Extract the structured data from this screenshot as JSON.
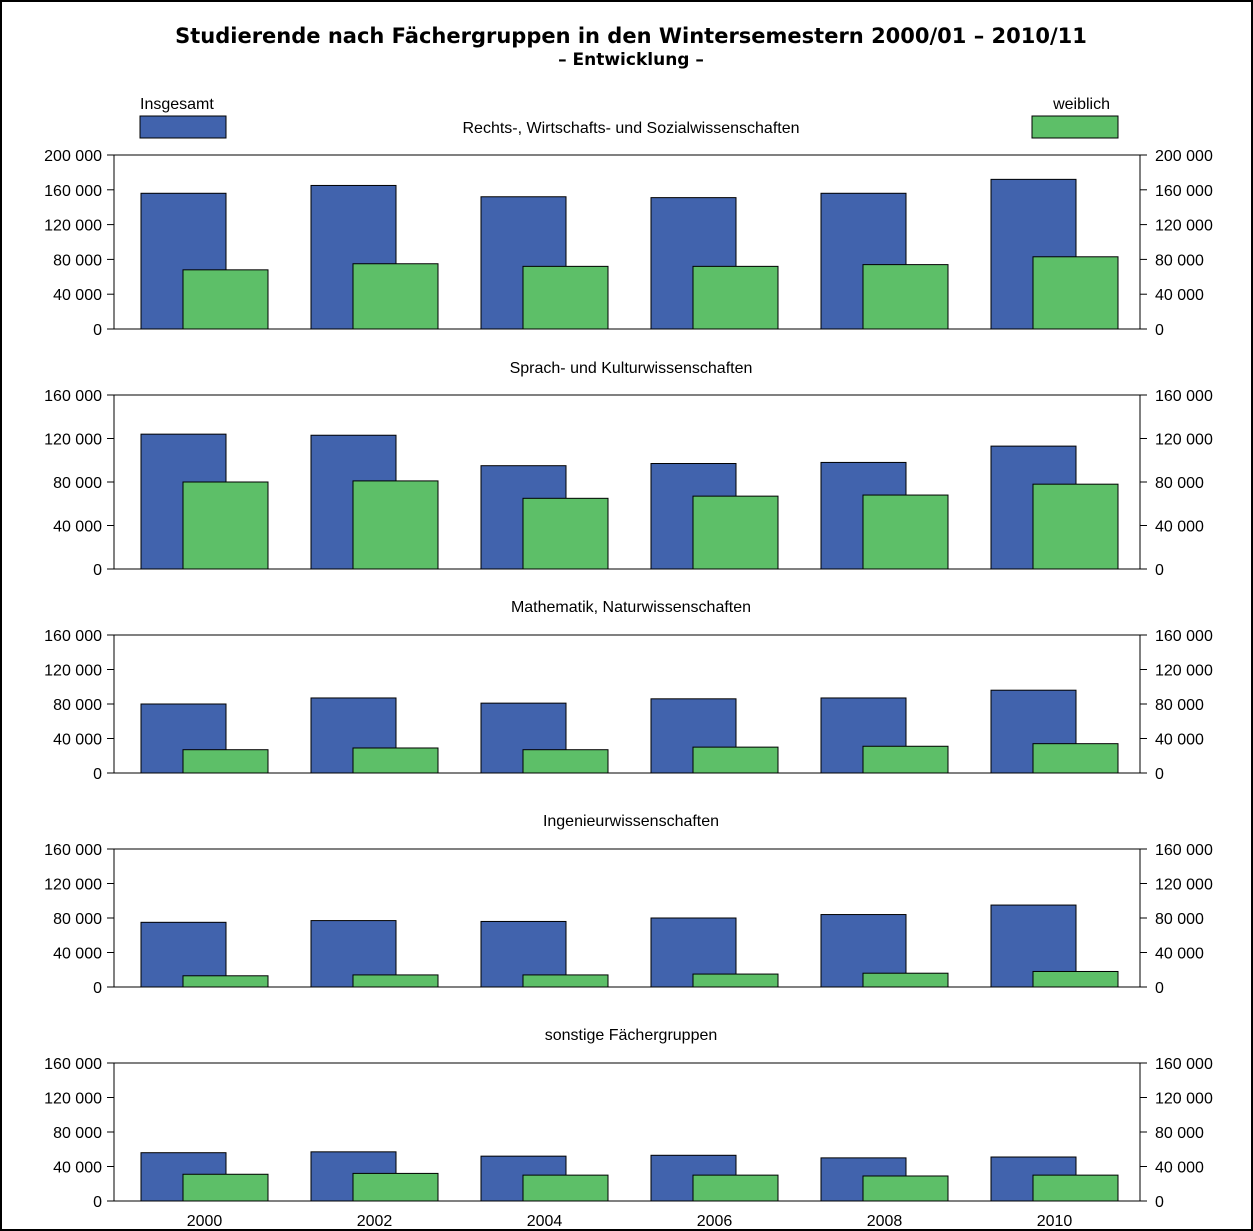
{
  "chart_data": {
    "type": "bar",
    "title": "Studierende nach Fächergruppen in den Wintersemestern 2000/01 – 2010/11",
    "subtitle": "– Entwicklung –",
    "categories": [
      "2000",
      "2002",
      "2004",
      "2006",
      "2008",
      "2010"
    ],
    "legend": {
      "placement": "top",
      "series": [
        {
          "name": "Insgesamt",
          "color": "#4163ad"
        },
        {
          "name": "weiblich",
          "color": "#5dbf68"
        }
      ]
    },
    "grid": false,
    "panels": [
      {
        "title": "Rechts-, Wirtschafts- und Sozialwissenschaften",
        "ylim": [
          0,
          200000
        ],
        "yticks": [
          0,
          40000,
          80000,
          120000,
          160000,
          200000
        ],
        "ytick_labels": [
          "0",
          "40 000",
          "80 000",
          "120 000",
          "160 000",
          "200 000"
        ],
        "series": [
          {
            "name": "Insgesamt",
            "values": [
              156000,
              165000,
              152000,
              151000,
              156000,
              172000
            ]
          },
          {
            "name": "weiblich",
            "values": [
              68000,
              75000,
              72000,
              72000,
              74000,
              83000
            ]
          }
        ]
      },
      {
        "title": "Sprach- und Kulturwissenschaften",
        "ylim": [
          0,
          160000
        ],
        "yticks": [
          0,
          40000,
          80000,
          120000,
          160000
        ],
        "ytick_labels": [
          "0",
          "40 000",
          "80 000",
          "120 000",
          "160 000"
        ],
        "series": [
          {
            "name": "Insgesamt",
            "values": [
              124000,
              123000,
              95000,
              97000,
              98000,
              113000
            ]
          },
          {
            "name": "weiblich",
            "values": [
              80000,
              81000,
              65000,
              67000,
              68000,
              78000
            ]
          }
        ]
      },
      {
        "title": "Mathematik, Naturwissenschaften",
        "ylim": [
          0,
          160000
        ],
        "yticks": [
          0,
          40000,
          80000,
          120000,
          160000
        ],
        "ytick_labels": [
          "0",
          "40 000",
          "80 000",
          "120 000",
          "160 000"
        ],
        "series": [
          {
            "name": "Insgesamt",
            "values": [
              80000,
              87000,
              81000,
              86000,
              87000,
              96000
            ]
          },
          {
            "name": "weiblich",
            "values": [
              27000,
              29000,
              27000,
              30000,
              31000,
              34000
            ]
          }
        ]
      },
      {
        "title": "Ingenieurwissenschaften",
        "ylim": [
          0,
          160000
        ],
        "yticks": [
          0,
          40000,
          80000,
          120000,
          160000
        ],
        "ytick_labels": [
          "0",
          "40 000",
          "80 000",
          "120 000",
          "160 000"
        ],
        "series": [
          {
            "name": "Insgesamt",
            "values": [
              75000,
              77000,
              76000,
              80000,
              84000,
              95000
            ]
          },
          {
            "name": "weiblich",
            "values": [
              13000,
              14000,
              14000,
              15000,
              16000,
              18000
            ]
          }
        ]
      },
      {
        "title": "sonstige Fächergruppen",
        "ylim": [
          0,
          160000
        ],
        "yticks": [
          0,
          40000,
          80000,
          120000,
          160000
        ],
        "ytick_labels": [
          "0",
          "40 000",
          "80 000",
          "120 000",
          "160 000"
        ],
        "series": [
          {
            "name": "Insgesamt",
            "values": [
              56000,
              57000,
              52000,
              53000,
              50000,
              51000
            ]
          },
          {
            "name": "weiblich",
            "values": [
              31000,
              32000,
              30000,
              30000,
              29000,
              30000
            ]
          }
        ]
      }
    ]
  }
}
